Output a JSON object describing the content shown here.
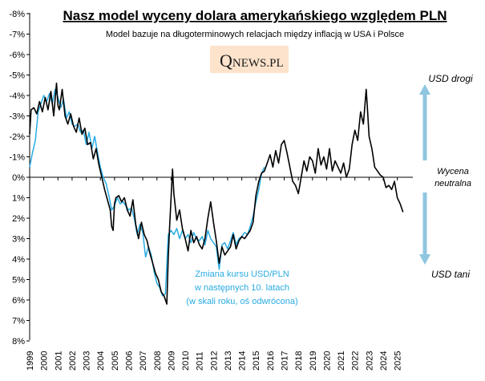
{
  "chart_data": {
    "type": "line",
    "title": "Nasz model wyceny dolara amerykańskiego względem PLN",
    "subtitle": "Model bazuje na długoterminowych  relacjach między inflacją w USA i Polsce",
    "logo": {
      "q": "Q",
      "rest": "NEWS.PL",
      "background": "#fde3cc"
    },
    "y_axis": {
      "inverted": true,
      "range": [
        -8,
        8
      ],
      "ticks": [
        -8,
        -7,
        -6,
        -5,
        -4,
        -3,
        -2,
        -1,
        0,
        1,
        2,
        3,
        4,
        5,
        6,
        7,
        8
      ],
      "tick_labels": [
        "-8%",
        "-7%",
        "-6%",
        "-5%",
        "-4%",
        "-3%",
        "-2%",
        "-1%",
        "0%",
        "1%",
        "2%",
        "3%",
        "4%",
        "5%",
        "6%",
        "7%",
        "8%"
      ]
    },
    "x_axis": {
      "range": [
        1999,
        2026.5
      ],
      "tick_labels": [
        "1999",
        "2000",
        "2001",
        "2002",
        "2003",
        "2004",
        "2005",
        "2006",
        "2007",
        "2008",
        "2009",
        "2010",
        "2011",
        "2012",
        "2013",
        "2014",
        "2015",
        "2016",
        "2017",
        "2018",
        "2019",
        "2020",
        "2021",
        "2022",
        "2023",
        "2024",
        "2025"
      ]
    },
    "grid": false,
    "series": [
      {
        "color": "#000000",
        "points": [
          [
            1999.0,
            -2.1
          ],
          [
            1999.1,
            -3.3
          ],
          [
            1999.3,
            -3.4
          ],
          [
            1999.5,
            -3.1
          ],
          [
            1999.7,
            -3.7
          ],
          [
            1999.9,
            -3.2
          ],
          [
            2000.1,
            -3.9
          ],
          [
            2000.3,
            -3.3
          ],
          [
            2000.5,
            -4.2
          ],
          [
            2000.7,
            -3.0
          ],
          [
            2000.9,
            -4.6
          ],
          [
            2001.0,
            -3.5
          ],
          [
            2001.1,
            -3.3
          ],
          [
            2001.3,
            -4.3
          ],
          [
            2001.5,
            -3.0
          ],
          [
            2001.7,
            -2.6
          ],
          [
            2001.9,
            -3.1
          ],
          [
            2002.1,
            -2.5
          ],
          [
            2002.3,
            -2.2
          ],
          [
            2002.5,
            -2.9
          ],
          [
            2002.7,
            -2.1
          ],
          [
            2002.9,
            -2.4
          ],
          [
            2003.1,
            -1.6
          ],
          [
            2003.3,
            -1.7
          ],
          [
            2003.5,
            -0.9
          ],
          [
            2003.7,
            -1.4
          ],
          [
            2003.9,
            -0.6
          ],
          [
            2004.1,
            0.0
          ],
          [
            2004.3,
            0.6
          ],
          [
            2004.5,
            1.1
          ],
          [
            2004.7,
            1.6
          ],
          [
            2004.8,
            2.4
          ],
          [
            2004.9,
            2.6
          ],
          [
            2005.0,
            1.3
          ],
          [
            2005.1,
            1.0
          ],
          [
            2005.3,
            0.9
          ],
          [
            2005.5,
            1.2
          ],
          [
            2005.7,
            1.0
          ],
          [
            2005.9,
            1.6
          ],
          [
            2006.1,
            1.9
          ],
          [
            2006.3,
            1.1
          ],
          [
            2006.5,
            2.3
          ],
          [
            2006.7,
            3.0
          ],
          [
            2006.9,
            2.2
          ],
          [
            2007.1,
            2.8
          ],
          [
            2007.3,
            3.1
          ],
          [
            2007.5,
            3.7
          ],
          [
            2007.7,
            4.2
          ],
          [
            2007.9,
            4.7
          ],
          [
            2008.1,
            5.0
          ],
          [
            2008.3,
            5.6
          ],
          [
            2008.5,
            5.8
          ],
          [
            2008.7,
            6.2
          ],
          [
            2008.8,
            3.9
          ],
          [
            2008.9,
            2.4
          ],
          [
            2009.0,
            1.0
          ],
          [
            2009.1,
            -0.4
          ],
          [
            2009.2,
            0.8
          ],
          [
            2009.4,
            2.1
          ],
          [
            2009.6,
            1.6
          ],
          [
            2009.8,
            2.5
          ],
          [
            2010.0,
            3.0
          ],
          [
            2010.2,
            3.6
          ],
          [
            2010.4,
            2.6
          ],
          [
            2010.6,
            3.2
          ],
          [
            2010.8,
            2.9
          ],
          [
            2011.0,
            3.3
          ],
          [
            2011.2,
            3.5
          ],
          [
            2011.4,
            3.0
          ],
          [
            2011.6,
            2.0
          ],
          [
            2011.8,
            1.2
          ],
          [
            2012.0,
            2.2
          ],
          [
            2012.2,
            3.1
          ],
          [
            2012.4,
            4.2
          ],
          [
            2012.6,
            3.4
          ],
          [
            2012.8,
            3.8
          ],
          [
            2013.0,
            3.6
          ],
          [
            2013.2,
            3.4
          ],
          [
            2013.4,
            2.8
          ],
          [
            2013.6,
            3.5
          ],
          [
            2013.8,
            3.1
          ],
          [
            2014.0,
            2.9
          ],
          [
            2014.2,
            3.0
          ],
          [
            2014.4,
            2.8
          ],
          [
            2014.6,
            2.6
          ],
          [
            2014.8,
            2.2
          ],
          [
            2015.0,
            0.9
          ],
          [
            2015.2,
            0.2
          ],
          [
            2015.4,
            -0.2
          ],
          [
            2015.6,
            -0.3
          ],
          [
            2015.8,
            -0.7
          ],
          [
            2016.0,
            -1.1
          ],
          [
            2016.2,
            -0.5
          ],
          [
            2016.4,
            -1.3
          ],
          [
            2016.6,
            -0.7
          ],
          [
            2016.8,
            -1.6
          ],
          [
            2017.0,
            -1.8
          ],
          [
            2017.2,
            -1.2
          ],
          [
            2017.4,
            -0.5
          ],
          [
            2017.6,
            0.2
          ],
          [
            2017.8,
            0.4
          ],
          [
            2018.0,
            0.8
          ],
          [
            2018.2,
            0.0
          ],
          [
            2018.4,
            -0.8
          ],
          [
            2018.6,
            -0.3
          ],
          [
            2018.8,
            -1.0
          ],
          [
            2019.0,
            -0.8
          ],
          [
            2019.2,
            -0.2
          ],
          [
            2019.4,
            -1.4
          ],
          [
            2019.6,
            -0.6
          ],
          [
            2019.8,
            -1.0
          ],
          [
            2020.0,
            -0.4
          ],
          [
            2020.2,
            -1.4
          ],
          [
            2020.4,
            -0.3
          ],
          [
            2020.6,
            -0.8
          ],
          [
            2020.8,
            -0.5
          ],
          [
            2021.0,
            -0.2
          ],
          [
            2021.2,
            -0.7
          ],
          [
            2021.4,
            0.0
          ],
          [
            2021.6,
            -0.4
          ],
          [
            2021.8,
            -1.6
          ],
          [
            2022.0,
            -2.3
          ],
          [
            2022.2,
            -1.8
          ],
          [
            2022.4,
            -3.2
          ],
          [
            2022.6,
            -2.6
          ],
          [
            2022.8,
            -4.3
          ],
          [
            2022.9,
            -3.2
          ],
          [
            2023.0,
            -2.0
          ],
          [
            2023.2,
            -1.4
          ],
          [
            2023.4,
            -0.5
          ],
          [
            2023.6,
            -0.3
          ],
          [
            2023.8,
            -0.1
          ],
          [
            2024.0,
            0.0
          ],
          [
            2024.2,
            0.5
          ],
          [
            2024.4,
            0.4
          ],
          [
            2024.6,
            0.6
          ],
          [
            2024.8,
            0.2
          ],
          [
            2025.0,
            1.0
          ],
          [
            2025.2,
            1.3
          ],
          [
            2025.4,
            1.7
          ]
        ]
      },
      {
        "color": "#29abe2",
        "points": [
          [
            1999.0,
            -0.5
          ],
          [
            1999.2,
            -1.2
          ],
          [
            1999.4,
            -1.8
          ],
          [
            1999.6,
            -3.2
          ],
          [
            1999.8,
            -3.6
          ],
          [
            2000.0,
            -4.0
          ],
          [
            2000.2,
            -3.7
          ],
          [
            2000.4,
            -4.1
          ],
          [
            2000.6,
            -3.6
          ],
          [
            2000.8,
            -4.3
          ],
          [
            2001.0,
            -3.9
          ],
          [
            2001.2,
            -3.4
          ],
          [
            2001.4,
            -3.8
          ],
          [
            2001.6,
            -2.9
          ],
          [
            2001.8,
            -3.2
          ],
          [
            2002.0,
            -2.6
          ],
          [
            2002.2,
            -2.5
          ],
          [
            2002.4,
            -2.6
          ],
          [
            2002.6,
            -2.2
          ],
          [
            2002.8,
            -2.3
          ],
          [
            2003.0,
            -1.6
          ],
          [
            2003.2,
            -2.2
          ],
          [
            2003.4,
            -1.4
          ],
          [
            2003.6,
            -2.0
          ],
          [
            2003.8,
            -1.2
          ],
          [
            2004.0,
            -0.5
          ],
          [
            2004.2,
            0.0
          ],
          [
            2004.4,
            0.3
          ],
          [
            2004.6,
            0.9
          ],
          [
            2004.8,
            1.6
          ],
          [
            2005.0,
            1.4
          ],
          [
            2005.2,
            1.0
          ],
          [
            2005.4,
            1.3
          ],
          [
            2005.6,
            1.2
          ],
          [
            2005.8,
            1.4
          ],
          [
            2006.0,
            1.6
          ],
          [
            2006.2,
            1.5
          ],
          [
            2006.4,
            2.0
          ],
          [
            2006.6,
            2.8
          ],
          [
            2006.8,
            2.3
          ],
          [
            2007.0,
            2.7
          ],
          [
            2007.2,
            3.9
          ],
          [
            2007.4,
            3.4
          ],
          [
            2007.6,
            3.8
          ],
          [
            2007.8,
            4.6
          ],
          [
            2008.0,
            5.2
          ],
          [
            2008.2,
            5.4
          ],
          [
            2008.4,
            5.8
          ],
          [
            2008.6,
            5.7
          ],
          [
            2008.8,
            2.8
          ],
          [
            2009.0,
            2.6
          ],
          [
            2009.2,
            2.8
          ],
          [
            2009.4,
            2.5
          ],
          [
            2009.6,
            3.0
          ],
          [
            2009.8,
            2.6
          ],
          [
            2010.0,
            3.0
          ],
          [
            2010.2,
            2.8
          ],
          [
            2010.4,
            3.2
          ],
          [
            2010.6,
            2.7
          ],
          [
            2010.8,
            3.0
          ],
          [
            2011.0,
            3.1
          ],
          [
            2011.2,
            2.9
          ],
          [
            2011.4,
            3.3
          ],
          [
            2011.6,
            2.6
          ],
          [
            2011.8,
            3.0
          ],
          [
            2012.0,
            3.2
          ],
          [
            2012.2,
            3.4
          ],
          [
            2012.4,
            4.5
          ],
          [
            2012.6,
            3.3
          ],
          [
            2012.8,
            3.2
          ],
          [
            2013.0,
            3.5
          ],
          [
            2013.2,
            3.1
          ],
          [
            2013.4,
            2.7
          ],
          [
            2013.6,
            3.3
          ],
          [
            2013.8,
            3.0
          ],
          [
            2014.0,
            2.9
          ],
          [
            2014.2,
            2.7
          ],
          [
            2014.4,
            2.8
          ],
          [
            2014.6,
            2.4
          ],
          [
            2014.8,
            1.9
          ],
          [
            2015.0,
            1.2
          ],
          [
            2015.2,
            0.6
          ],
          [
            2015.4,
            -0.2
          ],
          [
            2015.6,
            -0.5
          ]
        ]
      }
    ],
    "annotations": {
      "series_note": [
        "Zmiana kursu USD/PLN",
        "w następnych 10. latach",
        "(w skali roku, oś odwrócona)"
      ],
      "top_label": "USD drogi",
      "middle_label": [
        "Wycena",
        "neutralna"
      ],
      "bottom_label": "USD tani",
      "arrow_color": "#8fc6e0"
    }
  }
}
